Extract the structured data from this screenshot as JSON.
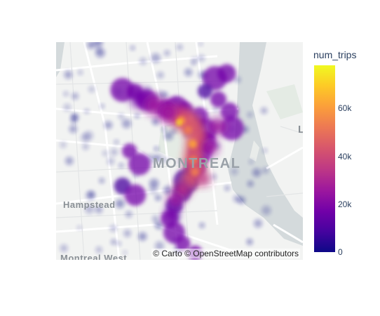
{
  "map": {
    "place_labels": {
      "montreal": "MONTREAL",
      "hampstead": "Hampstead",
      "montreal_west": "Montreal West",
      "partial_l": "L"
    },
    "attribution": "© Carto © OpenStreetMap contributors",
    "basemap_colors": {
      "land": "#f2f3f2",
      "water": "#d4dadc",
      "road": "#ffffff",
      "park": "#e4ebe4"
    }
  },
  "colorbar": {
    "title": "num_trips",
    "ticks": [
      "0",
      "20k",
      "40k",
      "60k"
    ],
    "tick_values": [
      0,
      20000,
      40000,
      60000
    ],
    "max": 78000,
    "colorscale": [
      "#0d0887",
      "#46039f",
      "#7201a8",
      "#9c179e",
      "#bd3786",
      "#d8576b",
      "#ed7953",
      "#fb9f3a",
      "#fdca26",
      "#f0f921"
    ]
  }
}
